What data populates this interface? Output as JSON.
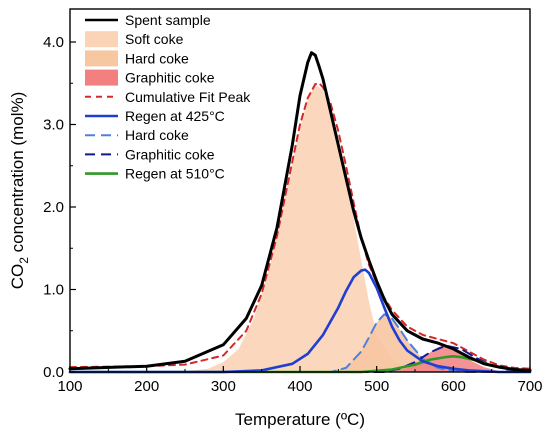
{
  "chart_data": {
    "type": "area",
    "xlabel": "Temperature (ºC)",
    "ylabel_main": "CO",
    "ylabel_sub": "2",
    "ylabel_rest": " concentration (mol%)",
    "xlim": [
      100,
      700
    ],
    "ylim": [
      0,
      4.4
    ],
    "x_ticks": [
      100,
      200,
      300,
      400,
      500,
      600,
      700
    ],
    "x_tick_labels": [
      "100",
      "200",
      "300",
      "400",
      "500",
      "600",
      "700"
    ],
    "y_ticks": [
      0,
      1,
      2,
      3,
      4
    ],
    "y_tick_labels": [
      "0.0",
      "1.0",
      "2.0",
      "3.0",
      "4.0"
    ],
    "grid": false,
    "legend_position": "top-left",
    "series": [
      {
        "name": "Spent sample",
        "kind": "line",
        "color": "#000000",
        "dash": "",
        "x": [
          100,
          200,
          250,
          300,
          330,
          350,
          370,
          390,
          400,
          410,
          415,
          420,
          425,
          430,
          440,
          450,
          460,
          470,
          480,
          490,
          500,
          510,
          520,
          540,
          560,
          580,
          600,
          620,
          640,
          660,
          680,
          700
        ],
        "y": [
          0.04,
          0.07,
          0.13,
          0.33,
          0.65,
          1.05,
          1.75,
          2.75,
          3.35,
          3.75,
          3.87,
          3.84,
          3.7,
          3.55,
          3.15,
          2.75,
          2.35,
          1.95,
          1.62,
          1.35,
          1.1,
          0.88,
          0.7,
          0.5,
          0.4,
          0.35,
          0.28,
          0.18,
          0.1,
          0.06,
          0.03,
          0.02
        ]
      },
      {
        "name": "Soft coke",
        "kind": "area",
        "color": "#fbd3b6",
        "dash": "",
        "x": [
          250,
          280,
          300,
          320,
          340,
          360,
          380,
          400,
          410,
          420,
          430,
          440,
          450,
          460,
          470,
          480,
          490,
          500,
          520,
          540,
          560
        ],
        "y": [
          0.01,
          0.04,
          0.12,
          0.28,
          0.65,
          1.25,
          2.1,
          2.95,
          3.3,
          3.48,
          3.42,
          3.2,
          2.85,
          2.4,
          1.85,
          1.35,
          0.85,
          0.45,
          0.15,
          0.04,
          0.0
        ]
      },
      {
        "name": "Hard coke",
        "kind": "area",
        "color": "#f7c7a1",
        "dash": "",
        "x": [
          440,
          460,
          480,
          490,
          500,
          510,
          520,
          530,
          540,
          560,
          580,
          600,
          620
        ],
        "y": [
          0.0,
          0.05,
          0.25,
          0.42,
          0.6,
          0.7,
          0.65,
          0.52,
          0.38,
          0.16,
          0.05,
          0.01,
          0.0
        ]
      },
      {
        "name": "Graphitic coke",
        "kind": "area",
        "color": "#f28080",
        "dash": "",
        "x": [
          520,
          540,
          560,
          570,
          580,
          590,
          600,
          610,
          620,
          640,
          660,
          680
        ],
        "y": [
          0.0,
          0.05,
          0.16,
          0.24,
          0.3,
          0.32,
          0.28,
          0.22,
          0.15,
          0.06,
          0.01,
          0.0
        ]
      },
      {
        "name": "Cumulative Fit Peak",
        "kind": "line",
        "color": "#d62828",
        "dash": "6,5",
        "x": [
          100,
          200,
          250,
          300,
          330,
          350,
          370,
          390,
          400,
          410,
          420,
          425,
          430,
          440,
          450,
          460,
          470,
          480,
          490,
          500,
          510,
          520,
          540,
          560,
          580,
          600,
          620,
          640,
          660,
          680,
          700
        ],
        "y": [
          0.06,
          0.07,
          0.09,
          0.2,
          0.5,
          0.95,
          1.65,
          2.55,
          3.0,
          3.32,
          3.49,
          3.5,
          3.45,
          3.25,
          2.92,
          2.5,
          2.05,
          1.62,
          1.3,
          1.08,
          0.9,
          0.75,
          0.55,
          0.45,
          0.4,
          0.35,
          0.25,
          0.15,
          0.08,
          0.05,
          0.04
        ]
      },
      {
        "name": "Regen at 425°C",
        "kind": "line",
        "color": "#1f3fd1",
        "dash": "",
        "x": [
          100,
          300,
          350,
          390,
          410,
          430,
          450,
          460,
          470,
          480,
          485,
          490,
          500,
          510,
          520,
          530,
          540,
          560,
          580,
          600,
          620,
          640,
          660,
          680,
          700
        ],
        "y": [
          0.0,
          0.0,
          0.02,
          0.1,
          0.22,
          0.45,
          0.78,
          0.98,
          1.15,
          1.23,
          1.24,
          1.2,
          1.02,
          0.78,
          0.55,
          0.38,
          0.26,
          0.13,
          0.07,
          0.04,
          0.02,
          0.01,
          0.0,
          0.0,
          0.0
        ]
      },
      {
        "name": "Hard coke",
        "kind": "line",
        "color": "#4f7fe0",
        "dash": "10,6",
        "x": [
          100,
          440,
          460,
          480,
          490,
          500,
          510,
          520,
          530,
          540,
          560,
          580,
          600,
          620,
          700
        ],
        "y": [
          0.0,
          0.0,
          0.05,
          0.25,
          0.42,
          0.6,
          0.7,
          0.65,
          0.52,
          0.38,
          0.16,
          0.05,
          0.01,
          0.0,
          0.0
        ]
      },
      {
        "name": "Graphitic coke",
        "kind": "line",
        "color": "#101a8f",
        "dash": "10,6",
        "x": [
          100,
          510,
          530,
          550,
          570,
          590,
          610,
          630,
          650,
          670,
          690,
          700
        ],
        "y": [
          0.0,
          0.0,
          0.04,
          0.12,
          0.24,
          0.32,
          0.28,
          0.17,
          0.08,
          0.03,
          0.01,
          0.0
        ]
      },
      {
        "name": "Regen at 510°C",
        "kind": "line",
        "color": "#2e9a26",
        "dash": "",
        "x": [
          100,
          480,
          520,
          550,
          570,
          590,
          600,
          610,
          630,
          650,
          670,
          690,
          700
        ],
        "y": [
          0.0,
          0.0,
          0.03,
          0.09,
          0.15,
          0.18,
          0.19,
          0.18,
          0.14,
          0.08,
          0.04,
          0.02,
          0.01
        ]
      }
    ],
    "legend": [
      {
        "label": "Spent sample",
        "swatch": "line",
        "color": "#000000",
        "dash": ""
      },
      {
        "label": "Soft coke",
        "swatch": "box",
        "color": "#fbd3b6",
        "dash": ""
      },
      {
        "label": "Hard coke",
        "swatch": "box",
        "color": "#f7c7a1",
        "dash": ""
      },
      {
        "label": "Graphitic coke",
        "swatch": "box",
        "color": "#f28080",
        "dash": ""
      },
      {
        "label": "Cumulative Fit Peak",
        "swatch": "line",
        "color": "#d62828",
        "dash": "6,5"
      },
      {
        "label": "Regen at 425°C",
        "swatch": "line",
        "color": "#1f3fd1",
        "dash": ""
      },
      {
        "label": "Hard coke",
        "swatch": "line",
        "color": "#4f7fe0",
        "dash": "10,6"
      },
      {
        "label": "Graphitic coke",
        "swatch": "line",
        "color": "#101a8f",
        "dash": "10,6"
      },
      {
        "label": "Regen at 510°C",
        "swatch": "line",
        "color": "#2e9a26",
        "dash": ""
      }
    ]
  }
}
